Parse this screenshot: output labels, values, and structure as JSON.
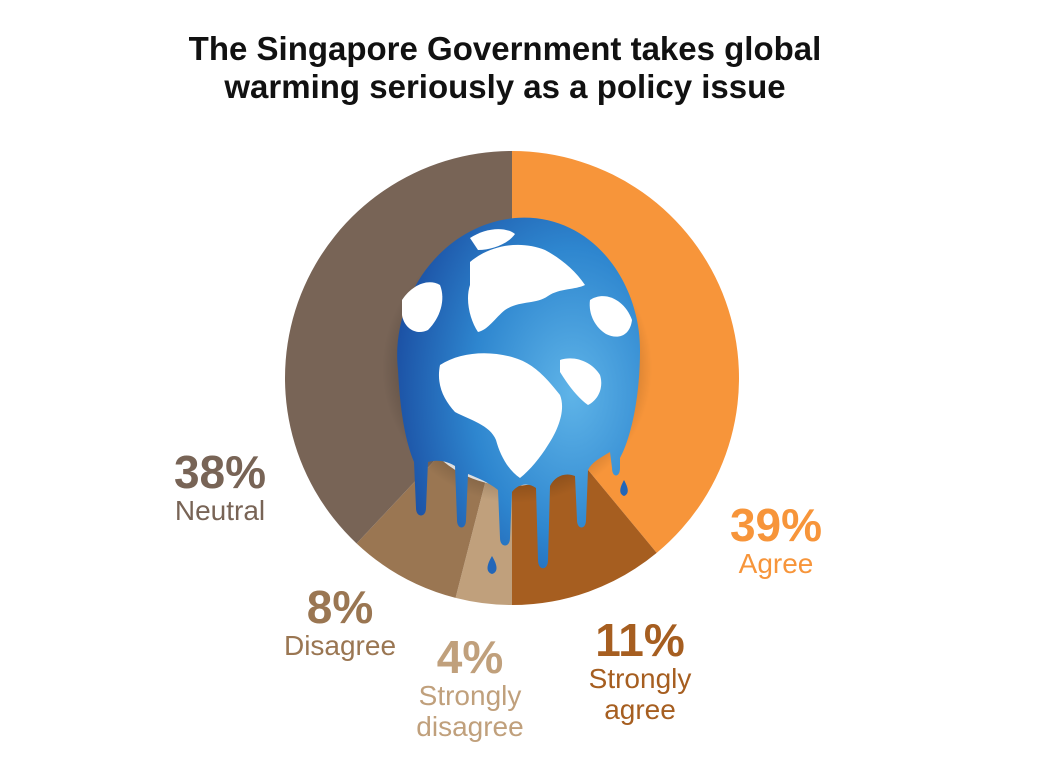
{
  "title_lines": [
    "The Singapore Government takes global",
    "warming seriously as a policy issue"
  ],
  "chart_data": {
    "type": "pie",
    "style": "donut with melting globe illustration in center",
    "title": "The Singapore Government takes global warming seriously as a policy issue",
    "categories": [
      "Agree",
      "Strongly agree",
      "Strongly disagree",
      "Disagree",
      "Neutral"
    ],
    "values": [
      39,
      11,
      4,
      8,
      38
    ],
    "value_labels": [
      "39%",
      "11%",
      "4%",
      "8%",
      "38%"
    ],
    "category_labels": [
      [
        "Agree"
      ],
      [
        "Strongly",
        "agree"
      ],
      [
        "Strongly",
        "disagree"
      ],
      [
        "Disagree"
      ],
      [
        "Neutral"
      ]
    ],
    "colors": [
      "#F7953A",
      "#A65E20",
      "#C0A07C",
      "#9A7652",
      "#786456"
    ],
    "start": "12 o'clock, clockwise",
    "legend": "none (labels beside slices)"
  },
  "illustration": {
    "name": "melting-globe-icon",
    "ocean_light": "#3A9BD9",
    "ocean_dark": "#1E55A8",
    "land": "#FFFFFF"
  }
}
